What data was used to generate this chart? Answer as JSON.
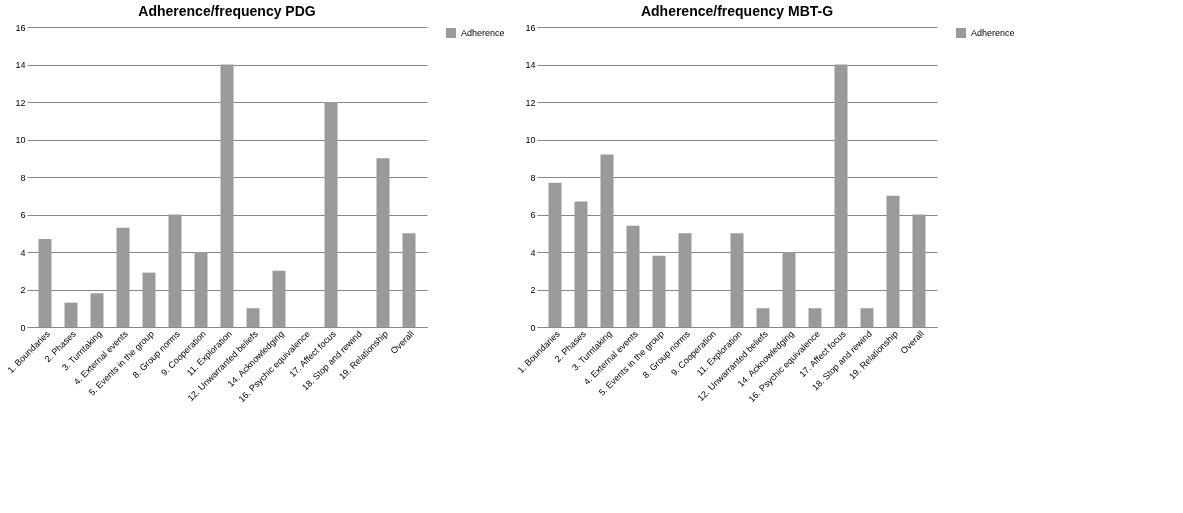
{
  "chart_data": [
    {
      "type": "bar",
      "title": "Adherence/frequency PDG",
      "categories": [
        "1. Boundaries",
        "2. Phases",
        "3. Turntaking",
        "4. External events",
        "5. Events in the group",
        "8. Group norms",
        "9. Cooperation",
        "11. Exploration",
        "12. Unwarranted beliefs",
        "14. Acknowledging",
        "16. Psychic equivalence",
        "17. Affect focus",
        "18. Stop and rewind",
        "19. Relationship",
        "Overall"
      ],
      "series": [
        {
          "name": "Adherence",
          "color": "#9a9a9a",
          "values": [
            4.7,
            1.3,
            1.8,
            5.3,
            2.9,
            6,
            4,
            14,
            1,
            3,
            0,
            12,
            0,
            9,
            5
          ]
        }
      ],
      "ylim": [
        0,
        16
      ],
      "yticks": [
        0,
        2,
        4,
        6,
        8,
        10,
        12,
        14,
        16
      ],
      "grid": "y",
      "legend": "right"
    },
    {
      "type": "bar",
      "title": "Adherence/frequency MBT-G",
      "categories": [
        "1. Boundaries",
        "2. Phases",
        "3. Turntaking",
        "4. External events",
        "5. Events in the group",
        "8. Group norms",
        "9. Cooperation",
        "11. Exploration",
        "12. Unwarranted beliefs",
        "14. Acknowledging",
        "16. Psychic equivalence",
        "17. Affect focus",
        "18. Stop and rewind",
        "19. Relationship",
        "Overall"
      ],
      "series": [
        {
          "name": "Adherence",
          "color": "#9a9a9a",
          "values": [
            7.7,
            6.7,
            9.2,
            5.4,
            3.8,
            5,
            0,
            5,
            1,
            4,
            1,
            14,
            1,
            7,
            6
          ]
        }
      ],
      "ylim": [
        0,
        16
      ],
      "yticks": [
        0,
        2,
        4,
        6,
        8,
        10,
        12,
        14,
        16
      ],
      "grid": "y",
      "legend": "right"
    }
  ]
}
